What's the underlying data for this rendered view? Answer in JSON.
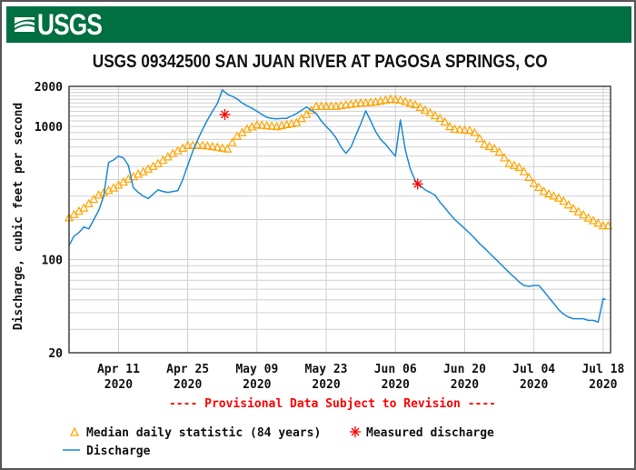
{
  "header": {
    "logo_text": "USGS",
    "brand_color": "#006F41"
  },
  "chart_data": {
    "type": "line",
    "title": "USGS 09342500 SAN JUAN RIVER AT PAGOSA SPRINGS, CO",
    "ylabel": "Discharge, cubic feet per second",
    "xlabel": "",
    "yscale": "log",
    "ylim": [
      20,
      2000
    ],
    "xlim_days": [
      0,
      109.5
    ],
    "x_unit": "days from Apr 01 2020",
    "grid": true,
    "y_ticks": [
      {
        "value": 2000,
        "label": "2000"
      },
      {
        "value": 1000,
        "label": "1000"
      },
      {
        "value": 100,
        "label": "100"
      },
      {
        "value": 20,
        "label": "20"
      }
    ],
    "x_ticks": [
      {
        "day": 10,
        "label": "Apr 11",
        "year": "2020"
      },
      {
        "day": 24,
        "label": "Apr 25",
        "year": "2020"
      },
      {
        "day": 38,
        "label": "May 09",
        "year": "2020"
      },
      {
        "day": 52,
        "label": "May 23",
        "year": "2020"
      },
      {
        "day": 66,
        "label": "Jun 06",
        "year": "2020"
      },
      {
        "day": 80,
        "label": "Jun 20",
        "year": "2020"
      },
      {
        "day": 94,
        "label": "Jul 04",
        "year": "2020"
      },
      {
        "day": 108,
        "label": "Jul 18",
        "year": "2020"
      }
    ],
    "annotation": "---- Provisional Data Subject to Revision ----",
    "series": [
      {
        "name": "Discharge",
        "color": "#1E88D4",
        "type": "line",
        "points": [
          [
            0,
            128
          ],
          [
            1,
            150
          ],
          [
            2,
            160
          ],
          [
            3,
            176
          ],
          [
            4,
            170
          ],
          [
            5,
            200
          ],
          [
            6,
            234
          ],
          [
            7,
            300
          ],
          [
            8,
            537
          ],
          [
            9,
            560
          ],
          [
            10,
            598
          ],
          [
            11,
            580
          ],
          [
            12,
            510
          ],
          [
            13,
            346
          ],
          [
            14,
            320
          ],
          [
            15,
            300
          ],
          [
            16,
            287
          ],
          [
            17,
            310
          ],
          [
            18,
            334
          ],
          [
            19,
            325
          ],
          [
            20,
            320
          ],
          [
            21,
            325
          ],
          [
            22,
            330
          ],
          [
            23,
            400
          ],
          [
            24,
            510
          ],
          [
            25,
            650
          ],
          [
            26,
            794
          ],
          [
            27,
            950
          ],
          [
            28,
            1120
          ],
          [
            29,
            1300
          ],
          [
            30,
            1490
          ],
          [
            31,
            1880
          ],
          [
            32,
            1750
          ],
          [
            33,
            1680
          ],
          [
            34,
            1610
          ],
          [
            35,
            1500
          ],
          [
            36,
            1430
          ],
          [
            37,
            1370
          ],
          [
            38,
            1300
          ],
          [
            39,
            1230
          ],
          [
            40,
            1170
          ],
          [
            41,
            1150
          ],
          [
            42,
            1140
          ],
          [
            43,
            1150
          ],
          [
            44,
            1150
          ],
          [
            45,
            1200
          ],
          [
            46,
            1250
          ],
          [
            47,
            1320
          ],
          [
            48,
            1400
          ],
          [
            49,
            1320
          ],
          [
            50,
            1250
          ],
          [
            51,
            1100
          ],
          [
            52,
            1000
          ],
          [
            53,
            915
          ],
          [
            54,
            820
          ],
          [
            55,
            700
          ],
          [
            56,
            628
          ],
          [
            57,
            700
          ],
          [
            58,
            858
          ],
          [
            59,
            1050
          ],
          [
            60,
            1310
          ],
          [
            61,
            1100
          ],
          [
            62,
            915
          ],
          [
            63,
            800
          ],
          [
            64,
            735
          ],
          [
            65,
            660
          ],
          [
            66,
            598
          ],
          [
            67,
            1120
          ],
          [
            68,
            667
          ],
          [
            69,
            480
          ],
          [
            70,
            392
          ],
          [
            71,
            360
          ],
          [
            72,
            334
          ],
          [
            73,
            320
          ],
          [
            74,
            305
          ],
          [
            75,
            270
          ],
          [
            76,
            245
          ],
          [
            77,
            220
          ],
          [
            78,
            200
          ],
          [
            79,
            185
          ],
          [
            80,
            171
          ],
          [
            81,
            158
          ],
          [
            82,
            145
          ],
          [
            83,
            132
          ],
          [
            84,
            122
          ],
          [
            85,
            112
          ],
          [
            86,
            103
          ],
          [
            87,
            95
          ],
          [
            88,
            87
          ],
          [
            89,
            80
          ],
          [
            90,
            74
          ],
          [
            91,
            68
          ],
          [
            92,
            64
          ],
          [
            93,
            63
          ],
          [
            94,
            64
          ],
          [
            95,
            64
          ],
          [
            96,
            58
          ],
          [
            97,
            52
          ],
          [
            98,
            47
          ],
          [
            99,
            42
          ],
          [
            100,
            39
          ],
          [
            101,
            37
          ],
          [
            102,
            36
          ],
          [
            103,
            36
          ],
          [
            104,
            36
          ],
          [
            105,
            35
          ],
          [
            106,
            35
          ],
          [
            107,
            34
          ],
          [
            108,
            51
          ],
          [
            108.5,
            50
          ]
        ]
      },
      {
        "name": "Median daily statistic (84 years)",
        "color": "#FFA500",
        "type": "markers",
        "marker": "triangle",
        "points": [
          [
            0,
            207
          ],
          [
            3,
            245
          ],
          [
            6,
            306
          ],
          [
            9,
            346
          ],
          [
            12,
            404
          ],
          [
            15,
            458
          ],
          [
            18,
            528
          ],
          [
            21,
            628
          ],
          [
            24,
            723
          ],
          [
            27,
            723
          ],
          [
            30,
            700
          ],
          [
            32,
            680
          ],
          [
            34,
            846
          ],
          [
            36,
            960
          ],
          [
            38,
            1030
          ],
          [
            42,
            1000
          ],
          [
            46,
            1070
          ],
          [
            50,
            1420
          ],
          [
            52,
            1420
          ],
          [
            54,
            1420
          ],
          [
            58,
            1490
          ],
          [
            62,
            1530
          ],
          [
            65,
            1610
          ],
          [
            67,
            1580
          ],
          [
            70,
            1460
          ],
          [
            73,
            1270
          ],
          [
            75.6,
            1120
          ],
          [
            77.5,
            960
          ],
          [
            81.7,
            930
          ],
          [
            84,
            735
          ],
          [
            86.6,
            670
          ],
          [
            89,
            528
          ],
          [
            91.4,
            488
          ],
          [
            94,
            375
          ],
          [
            96.3,
            320
          ],
          [
            99.4,
            287
          ],
          [
            101.8,
            245
          ],
          [
            105,
            206
          ],
          [
            108,
            180
          ],
          [
            109,
            180
          ]
        ]
      },
      {
        "name": "Measured discharge",
        "color": "#FF0000",
        "type": "markers",
        "marker": "asterisk",
        "points": [
          [
            31.5,
            1230
          ],
          [
            70.5,
            370
          ]
        ]
      }
    ],
    "legend": {
      "placement": "bottom-left",
      "entries": [
        "Median daily statistic (84 years)",
        "Measured discharge",
        "Discharge"
      ]
    }
  }
}
